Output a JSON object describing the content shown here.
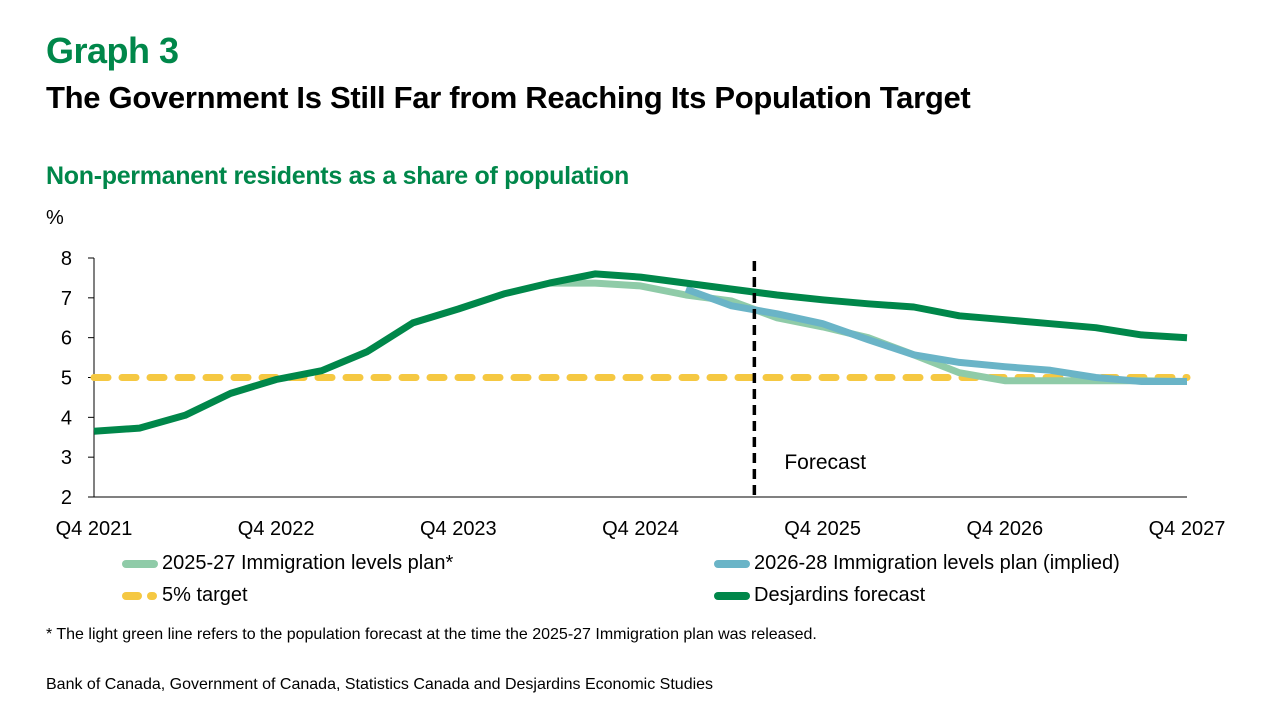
{
  "header": {
    "graph_label": "Graph 3",
    "title": "The Government Is Still Far from Reaching Its Population Target",
    "subtitle": "Non-permanent residents as a share of population",
    "unit": "%"
  },
  "chart_data": {
    "type": "line",
    "title": "Non-permanent residents as a share of population",
    "xlabel": "",
    "ylabel": "%",
    "ylim": [
      2,
      8
    ],
    "yticks": [
      2,
      3,
      4,
      5,
      6,
      7,
      8
    ],
    "x": [
      "Q4 2021",
      "Q1 2022",
      "Q2 2022",
      "Q3 2022",
      "Q4 2022",
      "Q1 2023",
      "Q2 2023",
      "Q3 2023",
      "Q4 2023",
      "Q1 2024",
      "Q2 2024",
      "Q3 2024",
      "Q4 2024",
      "Q1 2025",
      "Q2 2025",
      "Q3 2025",
      "Q4 2025",
      "Q1 2026",
      "Q2 2026",
      "Q3 2026",
      "Q4 2026",
      "Q1 2027",
      "Q2 2027",
      "Q3 2027",
      "Q4 2027"
    ],
    "xtick_labels": [
      "Q4 2021",
      "Q4 2022",
      "Q4 2023",
      "Q4 2024",
      "Q4 2025",
      "Q4 2026",
      "Q4 2027"
    ],
    "xtick_indices": [
      0,
      4,
      8,
      12,
      16,
      20,
      24
    ],
    "forecast_start_index": 14.5,
    "forecast_label": "Forecast",
    "grid": false,
    "legend_position": "bottom",
    "series": [
      {
        "name": "2025-27 Immigration levels plan*",
        "color": "#8FCBA8",
        "style": "solid",
        "start_index": 10,
        "values": [
          7.37,
          7.37,
          7.3,
          7.07,
          6.92,
          6.5,
          6.27,
          6.0,
          5.57,
          5.12,
          4.92,
          4.92,
          4.92,
          4.92,
          4.9
        ]
      },
      {
        "name": "2026-28 Immigration levels plan (implied)",
        "color": "#6AB4C7",
        "style": "solid",
        "start_index": 13,
        "values": [
          7.22,
          6.8,
          6.6,
          6.35,
          5.95,
          5.57,
          5.38,
          5.27,
          5.18,
          5.0,
          4.9,
          4.9
        ]
      },
      {
        "name": "5% target",
        "color": "#F5C842",
        "style": "dashed",
        "start_index": 0,
        "values": [
          5,
          5,
          5,
          5,
          5,
          5,
          5,
          5,
          5,
          5,
          5,
          5,
          5,
          5,
          5,
          5,
          5,
          5,
          5,
          5,
          5,
          5,
          5,
          5,
          5
        ]
      },
      {
        "name": "Desjardins forecast",
        "color": "#00874A",
        "style": "solid",
        "start_index": 0,
        "values": [
          3.65,
          3.73,
          4.05,
          4.6,
          4.95,
          5.17,
          5.65,
          6.37,
          6.72,
          7.1,
          7.37,
          7.6,
          7.52,
          7.37,
          7.22,
          7.07,
          6.95,
          6.85,
          6.77,
          6.55,
          6.45,
          6.35,
          6.25,
          6.07,
          6.0
        ]
      }
    ]
  },
  "legend": [
    {
      "label": "2025-27 Immigration levels plan*",
      "color": "#8FCBA8",
      "style": "solid"
    },
    {
      "label": "2026-28 Immigration levels plan (implied)",
      "color": "#6AB4C7",
      "style": "solid"
    },
    {
      "label": "5% target",
      "color": "#F5C842",
      "style": "dashed"
    },
    {
      "label": "Desjardins forecast",
      "color": "#00874A",
      "style": "solid"
    }
  ],
  "footnote": "* The light green line refers to the population forecast at the time the 2025-27 Immigration plan was released.",
  "source": "Bank of Canada, Government of Canada, Statistics Canada and Desjardins Economic Studies"
}
